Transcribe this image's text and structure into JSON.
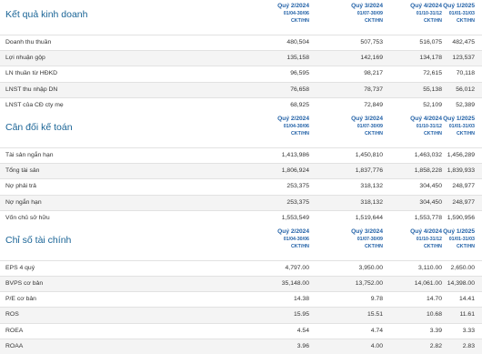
{
  "periods": [
    {
      "quarter": "Quý 2/2024",
      "dates": "01/04-30/06",
      "type": "CKT/HN"
    },
    {
      "quarter": "Quý 3/2024",
      "dates": "01/07-30/09",
      "type": "CKT/HN"
    },
    {
      "quarter": "Quý 4/2024",
      "dates": "01/10-31/12",
      "type": "CKT/HN"
    },
    {
      "quarter": "Quý 1/2025",
      "dates": "01/01-31/03",
      "type": "CKT/HN"
    }
  ],
  "sections": [
    {
      "title": "Kết quả kinh doanh",
      "rows": [
        {
          "label": "Doanh thu thuần",
          "values": [
            "480,504",
            "507,753",
            "516,075",
            "482,475"
          ]
        },
        {
          "label": "Lợi nhuận gộp",
          "values": [
            "135,158",
            "142,169",
            "134,178",
            "123,537"
          ]
        },
        {
          "label": "LN thuần từ HĐKD",
          "values": [
            "96,595",
            "98,217",
            "72,615",
            "70,118"
          ]
        },
        {
          "label": "LNST thu nhập DN",
          "values": [
            "76,658",
            "78,737",
            "55,138",
            "56,012"
          ]
        },
        {
          "label": "LNST của CĐ cty mẹ",
          "values": [
            "68,925",
            "72,849",
            "52,109",
            "52,389"
          ]
        }
      ]
    },
    {
      "title": "Cân đối kế toán",
      "rows": [
        {
          "label": "Tài sản ngắn hạn",
          "values": [
            "1,413,986",
            "1,450,810",
            "1,463,032",
            "1,456,289"
          ]
        },
        {
          "label": "Tổng tài sản",
          "values": [
            "1,806,924",
            "1,837,776",
            "1,858,228",
            "1,839,933"
          ]
        },
        {
          "label": "Nợ phải trả",
          "values": [
            "253,375",
            "318,132",
            "304,450",
            "248,977"
          ]
        },
        {
          "label": "Nợ ngắn hạn",
          "values": [
            "253,375",
            "318,132",
            "304,450",
            "248,977"
          ]
        },
        {
          "label": "Vốn chủ sở hữu",
          "values": [
            "1,553,549",
            "1,519,644",
            "1,553,778",
            "1,590,956"
          ]
        }
      ]
    },
    {
      "title": "Chỉ số tài chính",
      "rows": [
        {
          "label": "EPS 4 quý",
          "values": [
            "4,797.00",
            "3,950.00",
            "3,110.00",
            "2,650.00"
          ]
        },
        {
          "label": "BVPS cơ bản",
          "values": [
            "35,148.00",
            "13,752.00",
            "14,061.00",
            "14,398.00"
          ]
        },
        {
          "label": "P/E cơ bản",
          "values": [
            "14.38",
            "9.78",
            "14.70",
            "14.41"
          ]
        },
        {
          "label": "ROS",
          "values": [
            "15.95",
            "15.51",
            "10.68",
            "11.61"
          ]
        },
        {
          "label": "ROEA",
          "values": [
            "4.54",
            "4.74",
            "3.39",
            "3.33"
          ]
        },
        {
          "label": "ROAA",
          "values": [
            "3.96",
            "4.00",
            "2.82",
            "2.83"
          ]
        }
      ]
    }
  ]
}
